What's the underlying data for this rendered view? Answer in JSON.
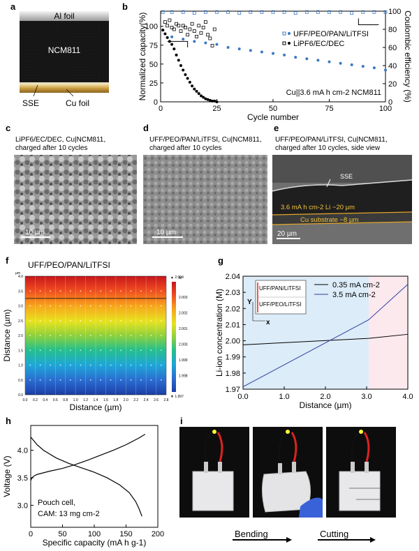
{
  "panel_letters": [
    "a",
    "b",
    "c",
    "d",
    "e",
    "f",
    "g",
    "h",
    "i"
  ],
  "panel_a": {
    "top_label": "Al foil",
    "center_label": "NCM811",
    "left_label": "SSE",
    "right_label": "Cu foil"
  },
  "chart_data": [
    {
      "id": "b",
      "type": "scatter",
      "xlabel": "Cycle number",
      "ylabel": "Normalized capacity(%)",
      "y2label": "Coulombic efficiency (%)",
      "xlim": [
        0,
        100
      ],
      "ylim": [
        0,
        120
      ],
      "y2lim": [
        0,
        100
      ],
      "xticks": [
        0,
        25,
        50,
        75,
        100
      ],
      "yticks": [
        0,
        25,
        50,
        75,
        100
      ],
      "y2ticks": [
        0,
        20,
        40,
        60,
        80,
        100
      ],
      "annotation": "Cu||3.6 mA h cm-2 NCM811",
      "legend": [
        "UFF/PEO/PAN/LiTFSI",
        "LiPF6/EC/DEC"
      ],
      "series": [
        {
          "name": "UFF/PEO/PAN/LiTFSI capacity",
          "axis": "left",
          "marker": "filled",
          "color": "#3a78c4",
          "x": [
            1,
            5,
            10,
            15,
            20,
            25,
            30,
            35,
            40,
            45,
            50,
            55,
            60,
            65,
            70,
            75,
            80,
            85,
            90,
            95,
            100
          ],
          "y": [
            95,
            86,
            83,
            80,
            78,
            76,
            72,
            70,
            68,
            66,
            64,
            62,
            59,
            57,
            55,
            53,
            51,
            49,
            47,
            45,
            42
          ]
        },
        {
          "name": "LiPF6/EC/DEC capacity",
          "axis": "left",
          "marker": "filled",
          "color": "#000000",
          "x": [
            1,
            2,
            3,
            4,
            5,
            6,
            7,
            8,
            9,
            10,
            11,
            12,
            13,
            14,
            15,
            16,
            17,
            18,
            19,
            20,
            21,
            22,
            23,
            24,
            25
          ],
          "y": [
            95,
            90,
            85,
            80,
            76,
            70,
            62,
            55,
            48,
            42,
            36,
            31,
            26,
            21,
            17,
            14,
            11,
            8,
            6,
            4,
            3,
            2,
            1,
            1,
            0
          ]
        },
        {
          "name": "UFF/PEO/PAN/LiTFSI CE",
          "axis": "right",
          "marker": "open",
          "color": "#3a78c4",
          "x": [
            1,
            5,
            10,
            15,
            20,
            25,
            30,
            35,
            40,
            45,
            50,
            55,
            60,
            65,
            70,
            75,
            80,
            85,
            90,
            95,
            100
          ],
          "y": [
            99,
            99,
            99,
            98,
            99,
            99,
            99,
            98,
            99,
            99,
            99,
            99,
            98,
            99,
            99,
            99,
            99,
            98,
            99,
            99,
            99
          ]
        },
        {
          "name": "LiPF6/EC/DEC CE",
          "axis": "right",
          "marker": "open",
          "color": "#000000",
          "x": [
            2,
            3,
            4,
            5,
            6,
            7,
            8,
            9,
            10,
            11,
            12,
            13,
            14,
            15,
            16,
            17,
            18,
            19,
            20,
            21,
            22,
            23,
            24
          ],
          "y": [
            88,
            84,
            90,
            82,
            80,
            86,
            84,
            78,
            84,
            82,
            74,
            80,
            86,
            78,
            72,
            84,
            76,
            82,
            88,
            74,
            70,
            62,
            80
          ]
        }
      ]
    },
    {
      "id": "f",
      "type": "heatmap",
      "title": "UFF/PEO/PAN/LiTFSI",
      "xlabel": "Distance (µm)",
      "ylabel": "Distance (µm)",
      "xlim": [
        0,
        2.8
      ],
      "ylim": [
        0,
        4.0
      ],
      "xticks": [
        "0.0",
        "0.2",
        "0.4",
        "0.6",
        "0.8",
        "1.0",
        "1.2",
        "1.4",
        "1.6",
        "1.8",
        "2.0",
        "2.2",
        "2.4",
        "2.6",
        "2.8"
      ],
      "yticks": [
        "0.0",
        "0.5",
        "1.0",
        "1.5",
        "2.0",
        "2.5",
        "3.0",
        "3.5",
        "4.0"
      ],
      "unit_small": "µm",
      "colorbar_unit": "M",
      "colorbar_max": "▲ 2.004",
      "colorbar_min": "▼ 1.997",
      "colorbar_ticks": [
        "2.003",
        "2.002",
        "2.001",
        "2.000",
        "1.999",
        "1.998"
      ],
      "interface_y": 3.25
    },
    {
      "id": "g",
      "type": "line",
      "xlabel": "Distance (µm)",
      "ylabel": "Li-ion concentration (M)",
      "xlim": [
        0,
        4.0
      ],
      "ylim": [
        1.97,
        2.04
      ],
      "xticks": [
        "0.0",
        "1.0",
        "2.0",
        "3.0",
        "4.0"
      ],
      "yticks": [
        "1.97",
        "1.98",
        "1.99",
        "2.00",
        "2.01",
        "2.02",
        "2.03",
        "2.04"
      ],
      "interface_x": 3.05,
      "inset_top": "UFF/PAN/LiTFSI",
      "inset_bottom": "UFF/PEO/LiTFSI",
      "inset_axis_y": "Y",
      "inset_axis_x": "x",
      "series": [
        {
          "name": "0.35 mA cm-2",
          "color": "#000000",
          "x": [
            0,
            3.05,
            4.0
          ],
          "y": [
            1.9975,
            2.0015,
            2.004
          ]
        },
        {
          "name": "3.5 mA cm-2",
          "color": "#3040a0",
          "x": [
            0,
            3.05,
            4.0
          ],
          "y": [
            1.9715,
            2.013,
            2.035
          ]
        }
      ]
    },
    {
      "id": "h",
      "type": "line",
      "xlabel": "Specific capacity (mA h g-1)",
      "ylabel": "Voltage (V)",
      "xlim": [
        0,
        200
      ],
      "ylim": [
        2.6,
        4.45
      ],
      "xticks": [
        "0",
        "50",
        "100",
        "150",
        "200"
      ],
      "yticks": [
        "3.0",
        "3.5",
        "4.0"
      ],
      "annotation_line1": "Pouch cell,",
      "annotation_line2": "CAM: 13 mg cm-2",
      "series": [
        {
          "name": "charge",
          "x": [
            0,
            2,
            5,
            10,
            20,
            30,
            50,
            70,
            90,
            110,
            130,
            150,
            170,
            180
          ],
          "y": [
            3.45,
            3.5,
            3.53,
            3.56,
            3.59,
            3.62,
            3.67,
            3.74,
            3.82,
            3.91,
            4.0,
            4.1,
            4.22,
            4.29
          ]
        },
        {
          "name": "discharge",
          "x": [
            0,
            5,
            10,
            20,
            40,
            60,
            80,
            100,
            120,
            140,
            155,
            165,
            170,
            175
          ],
          "y": [
            4.24,
            4.17,
            4.1,
            4.0,
            3.86,
            3.76,
            3.68,
            3.6,
            3.5,
            3.37,
            3.23,
            3.07,
            2.95,
            2.8
          ]
        }
      ]
    }
  ],
  "panel_c": {
    "line1": "LiPF6/EC/DEC, Cu|NCM811,",
    "line2": "charged after 10 cycles",
    "scale": "10 µm"
  },
  "panel_d": {
    "line1": "UFF/PEO/PAN/LiTFSI, Cu|NCM811,",
    "line2": "charged after 10 cycles",
    "scale": "10 µm"
  },
  "panel_e": {
    "line1": "UFF/PEO/PAN/LiTFSI, Cu|NCM811,",
    "line2": "charged after 10 cycles, side view",
    "sse": "SSE",
    "li": "3.6 mA h cm-2 Li ~20 µm",
    "cu": "Cu substrate ~8 µm",
    "scale": "20 µm"
  },
  "panel_i": {
    "bending": "Bending",
    "cutting": "Cutting"
  },
  "colors": {
    "blue": "#3a78c4",
    "heat_hi": "#d7191c",
    "heat_lo": "#1b3fa6",
    "g_left_bg": "#dcecf8",
    "g_right_bg": "#fbe9ee"
  }
}
